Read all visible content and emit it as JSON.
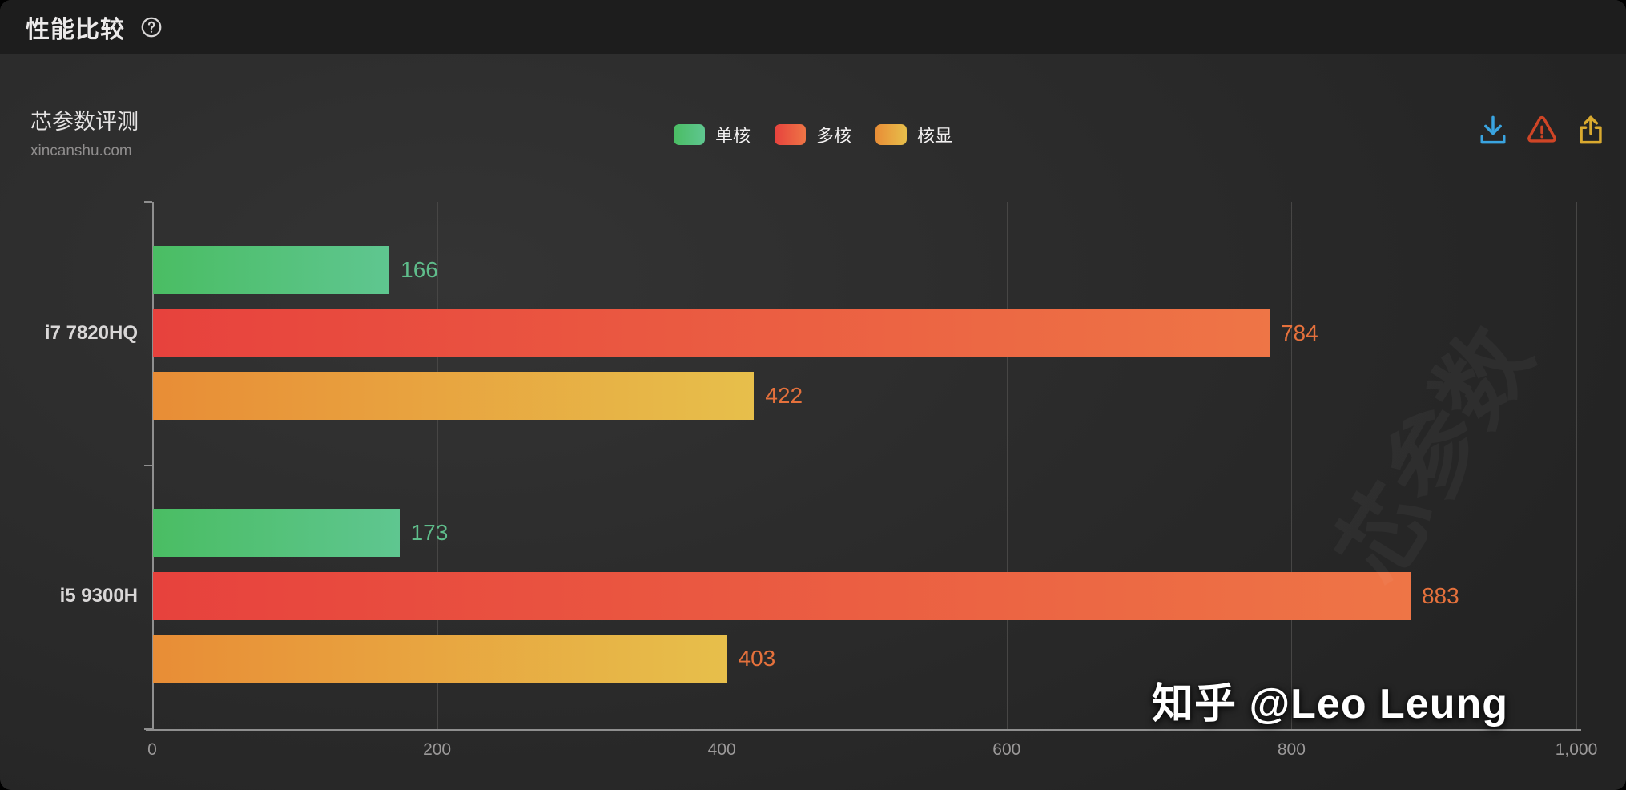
{
  "window": {
    "title": "性能比较"
  },
  "header": {
    "help_icon": "help-circle-icon"
  },
  "source": {
    "name": "芯参数评测",
    "url": "xincanshu.com"
  },
  "legend": {
    "items": [
      {
        "label": "单核",
        "gradient": [
          "#4abd63",
          "#5fc690"
        ]
      },
      {
        "label": "多核",
        "gradient": [
          "#e7423d",
          "#ee7546"
        ]
      },
      {
        "label": "核显",
        "gradient": [
          "#e88d36",
          "#e7bf4b"
        ]
      }
    ]
  },
  "toolbar": {
    "items": [
      {
        "name": "download-icon",
        "color": "#3aa4e0"
      },
      {
        "name": "warning-icon",
        "color": "#cf4526"
      },
      {
        "name": "share-icon",
        "color": "#d9a92f"
      }
    ]
  },
  "chart_data": {
    "type": "bar",
    "orientation": "horizontal",
    "categories": [
      "i7 7820HQ",
      "i5 9300H"
    ],
    "series": [
      {
        "name": "单核",
        "values": [
          166,
          173
        ],
        "gradient": [
          "#4abd63",
          "#5fc690"
        ],
        "label_color": "#5fbd8b"
      },
      {
        "name": "多核",
        "values": [
          784,
          883
        ],
        "gradient": [
          "#e7423d",
          "#ee7546"
        ],
        "label_color": "#e5713c"
      },
      {
        "name": "核显",
        "values": [
          422,
          403
        ],
        "gradient": [
          "#e88d36",
          "#e7bf4b"
        ],
        "label_color": "#e5713c"
      }
    ],
    "xlim": [
      0,
      1000
    ],
    "x_ticks": [
      {
        "value": 0,
        "label": "0"
      },
      {
        "value": 200,
        "label": "200"
      },
      {
        "value": 400,
        "label": "400"
      },
      {
        "value": 600,
        "label": "600"
      },
      {
        "value": 800,
        "label": "800"
      },
      {
        "value": 1000,
        "label": "1,000"
      }
    ],
    "grid": true,
    "legend_position": "top-center",
    "value_labels": true
  },
  "watermark": {
    "text": "知乎 @Leo Leung",
    "bg_text": "芯参数"
  }
}
